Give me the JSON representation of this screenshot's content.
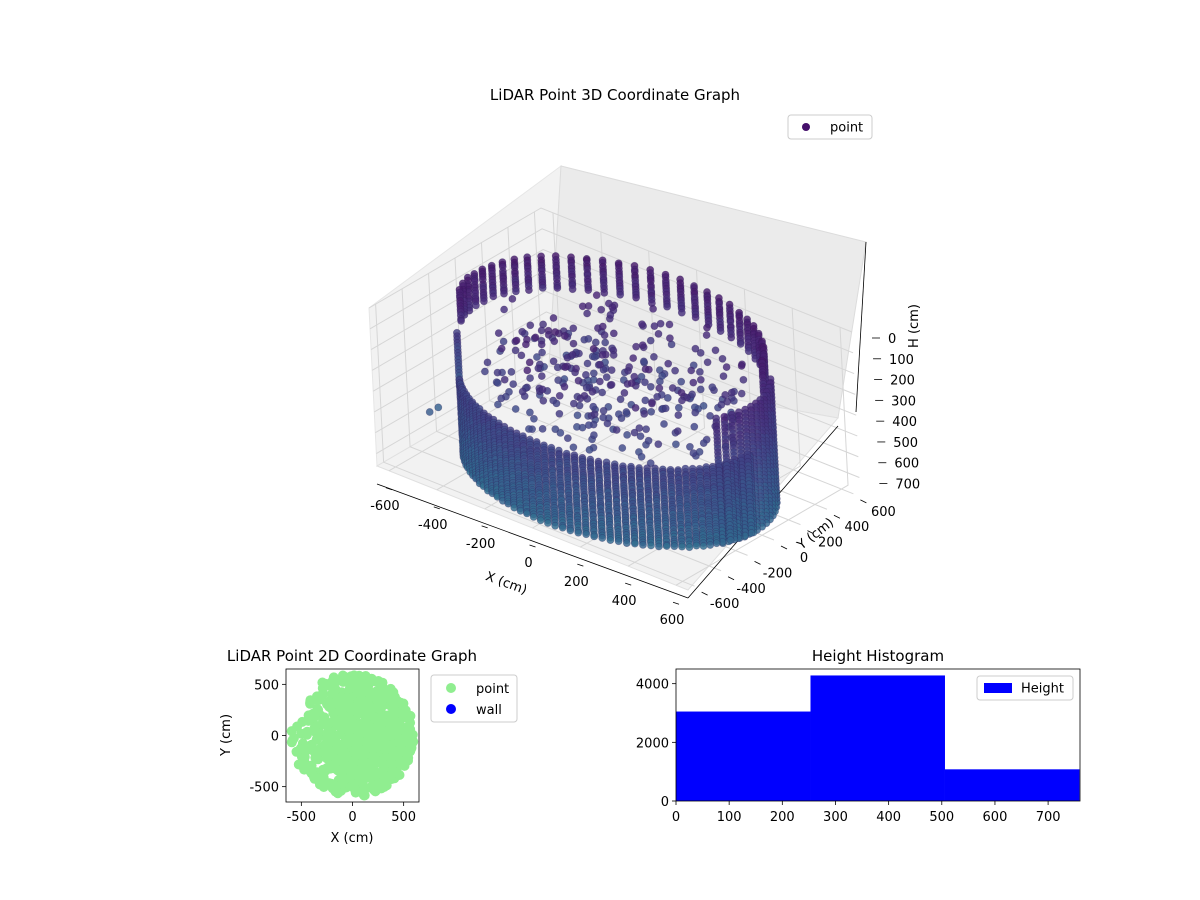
{
  "chart_data": [
    {
      "type": "scatter",
      "projection": "3d",
      "title": "LiDAR Point 3D Coordinate Graph",
      "xlabel": "X (cm)",
      "ylabel": "Y (cm)",
      "zlabel": "H (cm)",
      "xlim": [
        -650,
        650
      ],
      "ylim": [
        -650,
        650
      ],
      "zlim": [
        0,
        760
      ],
      "z_inverted": true,
      "xticks": [
        "-600",
        "-400",
        "-200",
        "0",
        "200",
        "400",
        "600"
      ],
      "yticks": [
        "-600",
        "-400",
        "-200",
        "0",
        "200",
        "400",
        "600"
      ],
      "zticks": [
        "0",
        "100",
        "200",
        "300",
        "400",
        "500",
        "600",
        "700"
      ],
      "grid": true,
      "legend": {
        "position": "top-right",
        "entries": [
          {
            "label": "point",
            "color": "#45106b"
          }
        ]
      },
      "series": [
        {
          "name": "point",
          "colormap": "viridis",
          "description_points": [
            {
              "x": 350,
              "y": -300,
              "h": 620
            },
            {
              "x": 0,
              "y": -450,
              "h": 640
            },
            {
              "x": -400,
              "y": -200,
              "h": 610
            },
            {
              "x": 450,
              "y": 100,
              "h": 300
            },
            {
              "x": 100,
              "y": 400,
              "h": 120
            },
            {
              "x": -300,
              "y": 400,
              "h": 140
            },
            {
              "x": -550,
              "y": 100,
              "h": 250
            },
            {
              "x": -600,
              "y": -150,
              "h": 560
            }
          ]
        }
      ]
    },
    {
      "type": "scatter",
      "title": "LiDAR Point 2D Coordinate Graph",
      "xlabel": "X (cm)",
      "ylabel": "Y (cm)",
      "xlim": [
        -650,
        650
      ],
      "ylim": [
        -650,
        650
      ],
      "xticks": [
        "-500",
        "0",
        "500"
      ],
      "yticks": [
        "-500",
        "0",
        "500"
      ],
      "legend": {
        "position": "outside-right",
        "entries": [
          {
            "label": "point",
            "color": "#90ee90"
          },
          {
            "label": "wall",
            "color": "#0000ff"
          }
        ]
      },
      "series": [
        {
          "name": "point",
          "color": "#90ee90",
          "shape": "approximately circular filled disk of radius ~600 cm centred near (0,0), with gaps on the left side"
        },
        {
          "name": "wall",
          "color": "#0000ff",
          "values": []
        }
      ]
    },
    {
      "type": "bar",
      "subtype": "histogram",
      "title": "Height Histogram",
      "xlabel": "",
      "ylabel": "",
      "xlim": [
        0,
        760
      ],
      "ylim": [
        0,
        4500
      ],
      "xticks": [
        "0",
        "100",
        "200",
        "300",
        "400",
        "500",
        "600",
        "700"
      ],
      "yticks": [
        "0",
        "2000",
        "4000"
      ],
      "color": "#0000ff",
      "legend": {
        "position": "top-right",
        "entries": [
          {
            "label": "Height",
            "color": "#0000ff"
          }
        ]
      },
      "bins": [
        {
          "start": 0,
          "end": 253,
          "count": 3050
        },
        {
          "start": 253,
          "end": 506,
          "count": 4280
        },
        {
          "start": 506,
          "end": 759,
          "count": 1080
        }
      ]
    }
  ]
}
